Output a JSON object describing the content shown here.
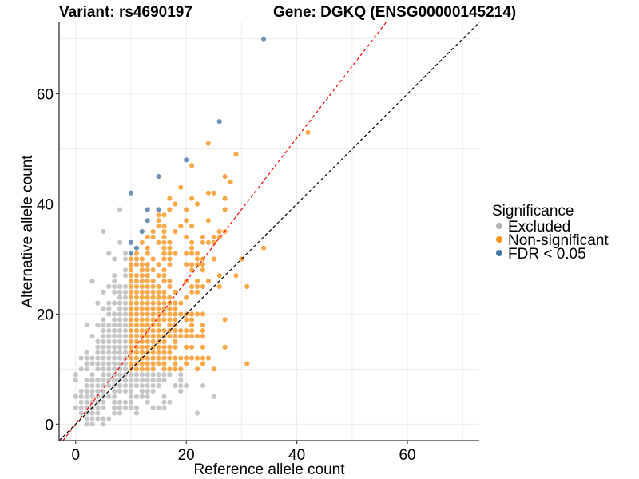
{
  "chart_data": {
    "type": "scatter",
    "title_left": "Variant: rs4690197",
    "title_right": "Gene: DGKQ (ENSG00000145214)",
    "xlabel": "Reference allele count",
    "ylabel": "Alternative allele count",
    "xlim": [
      -3,
      73
    ],
    "ylim": [
      -3,
      73
    ],
    "xticks": [
      0,
      20,
      40,
      60
    ],
    "yticks": [
      0,
      20,
      40,
      60
    ],
    "grid": true,
    "legend": {
      "title": "Significance",
      "placement": "right",
      "entries": [
        {
          "key": "excluded",
          "label": "Excluded",
          "color": "#b3b3b3"
        },
        {
          "key": "nonsig",
          "label": "Non-significant",
          "color": "#f7941d"
        },
        {
          "key": "fdr",
          "label": "FDR < 0.05",
          "color": "#4a77a8"
        }
      ]
    },
    "reference_lines": [
      {
        "name": "identity",
        "slope": 1.0,
        "intercept": 0,
        "color": "#000000",
        "style": "dashed"
      },
      {
        "name": "expected-ratio",
        "slope": 1.3,
        "intercept": 0,
        "color": "#ff0000",
        "style": "dashed"
      }
    ],
    "series": [
      {
        "name": "Excluded",
        "rows": [
          {
            "alt": 0,
            "refs": [
              2,
              3,
              5
            ]
          },
          {
            "alt": 1,
            "refs": [
              2,
              3,
              4,
              5,
              6
            ]
          },
          {
            "alt": 2,
            "refs": [
              1,
              2,
              3,
              4,
              7,
              8,
              11,
              22
            ]
          },
          {
            "alt": 3,
            "refs": [
              0,
              1,
              2,
              3,
              4,
              5,
              7,
              8,
              9,
              10,
              11,
              14,
              15,
              16
            ]
          },
          {
            "alt": 4,
            "refs": [
              1,
              2,
              3,
              4,
              5,
              7,
              8,
              9,
              10,
              13,
              16,
              17
            ]
          },
          {
            "alt": 5,
            "refs": [
              0,
              1,
              2,
              3,
              4,
              5,
              6,
              7,
              10,
              11,
              12,
              13,
              16,
              25
            ]
          },
          {
            "alt": 6,
            "refs": [
              1,
              2,
              3,
              4,
              5,
              7,
              8,
              9,
              10,
              12,
              13,
              14,
              19
            ]
          },
          {
            "alt": 7,
            "refs": [
              2,
              3,
              4,
              5,
              6,
              7,
              8,
              9,
              10,
              11,
              12,
              13,
              14,
              15,
              18,
              19,
              20,
              23
            ]
          },
          {
            "alt": 8,
            "refs": [
              0,
              2,
              3,
              4,
              5,
              6,
              7,
              8,
              9,
              10,
              11,
              12,
              13,
              14,
              15,
              16,
              19
            ]
          },
          {
            "alt": 9,
            "refs": [
              0,
              3,
              5,
              6,
              7,
              8,
              9,
              10,
              11,
              12,
              13,
              14,
              15,
              16,
              17,
              19
            ]
          },
          {
            "alt": 10,
            "refs": [
              1,
              2,
              4,
              5,
              6,
              7,
              8,
              9
            ]
          },
          {
            "alt": 11,
            "refs": [
              2,
              3,
              4,
              5,
              6,
              7,
              8,
              9
            ]
          },
          {
            "alt": 12,
            "refs": [
              1,
              2,
              3,
              4,
              5,
              6,
              7,
              8,
              9
            ]
          },
          {
            "alt": 13,
            "refs": [
              2,
              4,
              5,
              6,
              7,
              8,
              9
            ]
          },
          {
            "alt": 14,
            "refs": [
              4,
              5,
              6,
              7,
              8,
              9
            ]
          },
          {
            "alt": 15,
            "refs": [
              4,
              5,
              6,
              7,
              8,
              9
            ]
          },
          {
            "alt": 16,
            "refs": [
              3,
              5,
              6,
              7,
              8,
              9
            ]
          },
          {
            "alt": 17,
            "refs": [
              5,
              6,
              7,
              8,
              9
            ]
          },
          {
            "alt": 18,
            "refs": [
              2,
              4,
              5,
              6,
              7,
              8,
              9
            ]
          },
          {
            "alt": 19,
            "refs": [
              5,
              7,
              8,
              9
            ]
          },
          {
            "alt": 20,
            "refs": [
              6,
              7,
              8,
              9
            ]
          },
          {
            "alt": 21,
            "refs": [
              5,
              6,
              8,
              9
            ]
          },
          {
            "alt": 22,
            "refs": [
              4,
              6,
              7,
              8,
              9
            ]
          },
          {
            "alt": 23,
            "refs": [
              8,
              9
            ]
          },
          {
            "alt": 24,
            "refs": [
              5,
              7,
              8,
              9
            ]
          },
          {
            "alt": 25,
            "refs": [
              6,
              7,
              8,
              9
            ]
          },
          {
            "alt": 26,
            "refs": [
              3,
              7
            ]
          },
          {
            "alt": 27,
            "refs": [
              7,
              9
            ]
          },
          {
            "alt": 28,
            "refs": [
              9
            ]
          },
          {
            "alt": 30,
            "refs": [
              7,
              9
            ]
          },
          {
            "alt": 31,
            "refs": [
              6,
              9
            ]
          },
          {
            "alt": 33,
            "refs": [
              8
            ]
          },
          {
            "alt": 35,
            "refs": [
              5
            ]
          },
          {
            "alt": 39,
            "refs": [
              8
            ]
          }
        ]
      },
      {
        "name": "Non-significant",
        "rows": [
          {
            "alt": 10,
            "refs": [
              10,
              11,
              12,
              13,
              14,
              16,
              17,
              18,
              19,
              22,
              25
            ]
          },
          {
            "alt": 11,
            "refs": [
              10,
              11,
              12,
              13,
              14,
              15,
              16,
              18,
              20,
              23,
              31
            ]
          },
          {
            "alt": 12,
            "refs": [
              10,
              11,
              12,
              13,
              14,
              15,
              16,
              17,
              18,
              19,
              20,
              21,
              22,
              23,
              24
            ]
          },
          {
            "alt": 13,
            "refs": [
              10,
              11,
              12,
              13,
              14,
              15,
              16,
              17
            ]
          },
          {
            "alt": 14,
            "refs": [
              10,
              11,
              12,
              13,
              14,
              15,
              16,
              17,
              18,
              20,
              21,
              23,
              27
            ]
          },
          {
            "alt": 15,
            "refs": [
              10,
              11,
              12,
              13,
              14,
              15,
              16,
              18
            ]
          },
          {
            "alt": 16,
            "refs": [
              10,
              11,
              12,
              13,
              14,
              15,
              16,
              17,
              18,
              19,
              20,
              21,
              22,
              23
            ]
          },
          {
            "alt": 17,
            "refs": [
              10,
              11,
              12,
              13,
              14,
              15,
              16,
              17,
              18,
              19,
              20,
              21,
              23
            ]
          },
          {
            "alt": 18,
            "refs": [
              10,
              11,
              12,
              13,
              14,
              15,
              17,
              18,
              21,
              23
            ]
          },
          {
            "alt": 19,
            "refs": [
              10,
              11,
              12,
              13,
              14,
              15,
              16,
              17,
              18,
              20,
              21,
              27
            ]
          },
          {
            "alt": 20,
            "refs": [
              10,
              11,
              12,
              13,
              14,
              15,
              16,
              17,
              18,
              19,
              20,
              21,
              22,
              23
            ]
          },
          {
            "alt": 21,
            "refs": [
              10,
              11,
              12,
              13,
              14,
              15,
              16,
              17,
              18
            ]
          },
          {
            "alt": 22,
            "refs": [
              10,
              11,
              12,
              13,
              14,
              15,
              16,
              17,
              18,
              19
            ]
          },
          {
            "alt": 23,
            "refs": [
              10,
              11,
              12,
              13,
              14,
              15,
              16,
              17,
              20
            ]
          },
          {
            "alt": 24,
            "refs": [
              10,
              11,
              12,
              13,
              14,
              15,
              16,
              18,
              21,
              22
            ]
          },
          {
            "alt": 25,
            "refs": [
              10,
              11,
              12,
              13,
              14,
              15,
              17,
              21,
              22,
              23,
              26,
              31
            ]
          },
          {
            "alt": 26,
            "refs": [
              10,
              11,
              12,
              13,
              14,
              16,
              17,
              20,
              22,
              24
            ]
          },
          {
            "alt": 27,
            "refs": [
              10,
              11,
              12,
              13,
              15,
              16,
              26,
              29
            ]
          },
          {
            "alt": 28,
            "refs": [
              10,
              12,
              13,
              14,
              16,
              21,
              23
            ]
          },
          {
            "alt": 29,
            "refs": [
              10,
              11,
              12,
              13,
              15,
              17,
              20,
              21,
              22,
              23
            ]
          },
          {
            "alt": 30,
            "refs": [
              10,
              11,
              12,
              14,
              16,
              17,
              22,
              23,
              25,
              30
            ]
          },
          {
            "alt": 31,
            "refs": [
              11,
              13,
              16,
              17,
              18,
              20,
              21,
              22
            ]
          },
          {
            "alt": 32,
            "refs": [
              13,
              16,
              17,
              21,
              34
            ]
          },
          {
            "alt": 33,
            "refs": [
              12,
              15,
              16,
              17,
              21,
              23,
              24,
              25
            ]
          },
          {
            "alt": 34,
            "refs": [
              13,
              14,
              16,
              20,
              23,
              25,
              26
            ]
          },
          {
            "alt": 35,
            "refs": [
              14,
              16,
              18,
              26,
              27
            ]
          },
          {
            "alt": 36,
            "refs": [
              15,
              16,
              19,
              21
            ]
          },
          {
            "alt": 37,
            "refs": [
              15,
              20,
              24
            ]
          },
          {
            "alt": 38,
            "refs": [
              15,
              16
            ]
          },
          {
            "alt": 39,
            "refs": [
              17,
              20,
              27
            ]
          },
          {
            "alt": 40,
            "refs": [
              18,
              22
            ]
          },
          {
            "alt": 41,
            "refs": [
              17,
              21,
              27
            ]
          },
          {
            "alt": 42,
            "refs": [
              24,
              25
            ]
          },
          {
            "alt": 43,
            "refs": [
              19
            ]
          },
          {
            "alt": 44,
            "refs": [
              28
            ]
          },
          {
            "alt": 45,
            "refs": [
              27
            ]
          },
          {
            "alt": 47,
            "refs": [
              21
            ]
          },
          {
            "alt": 49,
            "refs": [
              29
            ]
          },
          {
            "alt": 51,
            "refs": [
              24
            ]
          },
          {
            "alt": 53,
            "refs": [
              42
            ]
          }
        ]
      },
      {
        "name": "FDR < 0.05",
        "rows": [
          {
            "alt": 31,
            "refs": [
              10
            ]
          },
          {
            "alt": 32,
            "refs": [
              11
            ]
          },
          {
            "alt": 33,
            "refs": [
              10
            ]
          },
          {
            "alt": 35,
            "refs": [
              12
            ]
          },
          {
            "alt": 37,
            "refs": [
              13
            ]
          },
          {
            "alt": 39,
            "refs": [
              13,
              15
            ]
          },
          {
            "alt": 42,
            "refs": [
              10
            ]
          },
          {
            "alt": 45,
            "refs": [
              15
            ]
          },
          {
            "alt": 48,
            "refs": [
              20
            ]
          },
          {
            "alt": 55,
            "refs": [
              26
            ]
          },
          {
            "alt": 70,
            "refs": [
              34
            ]
          }
        ]
      }
    ]
  }
}
